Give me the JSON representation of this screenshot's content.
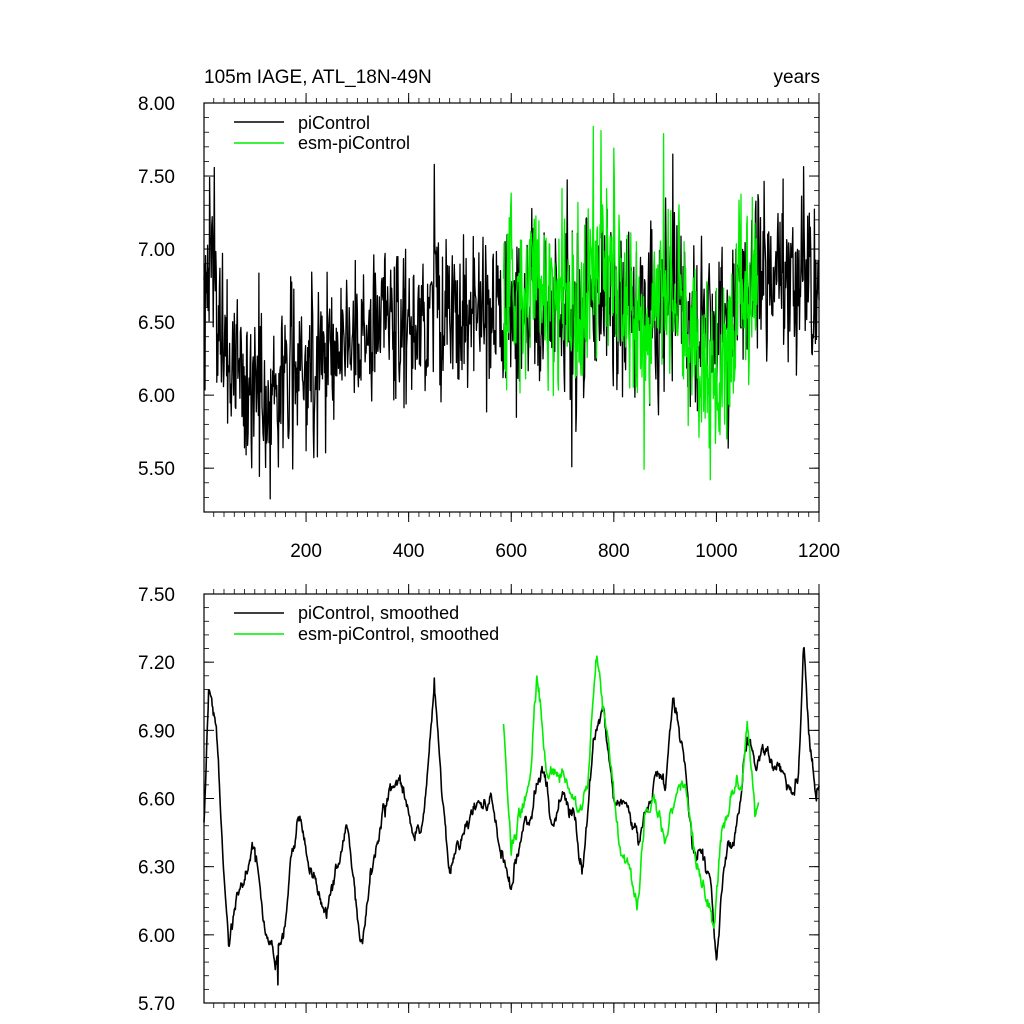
{
  "chart_data": [
    {
      "type": "line",
      "title": "105m IAGE, ATL_18N-49N",
      "unit": "years",
      "xlabel": "",
      "ylabel": "",
      "xlim": [
        1,
        1200
      ],
      "ylim": [
        5.2,
        8.0
      ],
      "x_ticks": [
        200,
        400,
        600,
        800,
        1000,
        1200
      ],
      "x_tick_labels": [
        "200",
        "400",
        "600",
        "800",
        "1000",
        "1200"
      ],
      "y_ticks": [
        5.5,
        6.0,
        6.5,
        7.0,
        7.5,
        8.0
      ],
      "y_tick_labels": [
        "5.50",
        "6.00",
        "6.50",
        "7.00",
        "7.50",
        "8.00"
      ],
      "legend_position": "top-left",
      "series": [
        {
          "name": "piControl",
          "color": "#000000",
          "x_range": [
            1,
            1200
          ],
          "profile": [
            [
              1,
              6.7
            ],
            [
              20,
              6.85
            ],
            [
              40,
              6.3
            ],
            [
              80,
              6.05
            ],
            [
              120,
              6.0
            ],
            [
              160,
              6.1
            ],
            [
              200,
              6.25
            ],
            [
              300,
              6.4
            ],
            [
              350,
              6.55
            ],
            [
              420,
              6.5
            ],
            [
              450,
              6.65
            ],
            [
              500,
              6.55
            ],
            [
              580,
              6.5
            ],
            [
              640,
              6.6
            ],
            [
              720,
              6.55
            ],
            [
              760,
              6.75
            ],
            [
              800,
              6.6
            ],
            [
              860,
              6.55
            ],
            [
              920,
              6.75
            ],
            [
              960,
              6.5
            ],
            [
              1000,
              6.45
            ],
            [
              1040,
              6.6
            ],
            [
              1080,
              6.75
            ],
            [
              1150,
              6.8
            ],
            [
              1200,
              6.75
            ]
          ],
          "noise_sd": 0.28,
          "peaks": [
            [
              12,
              7.49
            ],
            [
              130,
              5.29
            ],
            [
              450,
              7.58
            ],
            [
              718,
              5.51
            ],
            [
              915,
              7.65
            ],
            [
              1130,
              7.48
            ]
          ]
        },
        {
          "name": "esm-piControl",
          "color": "#00ee00",
          "x_range": [
            585,
            1080
          ],
          "profile": [
            [
              585,
              6.75
            ],
            [
              620,
              6.6
            ],
            [
              650,
              6.8
            ],
            [
              700,
              6.7
            ],
            [
              740,
              6.6
            ],
            [
              770,
              7.0
            ],
            [
              800,
              6.7
            ],
            [
              840,
              6.5
            ],
            [
              900,
              6.75
            ],
            [
              940,
              6.6
            ],
            [
              970,
              6.2
            ],
            [
              1000,
              6.15
            ],
            [
              1030,
              6.4
            ],
            [
              1050,
              6.75
            ],
            [
              1080,
              6.8
            ]
          ],
          "noise_sd": 0.3,
          "peaks": [
            [
              760,
              7.84
            ],
            [
              998,
              5.67
            ]
          ]
        }
      ]
    },
    {
      "type": "line",
      "title": "",
      "xlabel": "",
      "ylabel": "",
      "xlim": [
        1,
        1200
      ],
      "ylim": [
        5.7,
        7.5
      ],
      "x_ticks": [
        200,
        400,
        600,
        800,
        1000,
        1200
      ],
      "y_ticks": [
        5.7,
        6.0,
        6.3,
        6.6,
        6.9,
        7.2,
        7.5
      ],
      "y_tick_labels": [
        "5.70",
        "6.00",
        "6.30",
        "6.60",
        "6.90",
        "7.20",
        "7.50"
      ],
      "legend_position": "top-left",
      "series": [
        {
          "name": "piControl, smoothed",
          "color": "#000000",
          "x_range": [
            1,
            1200
          ],
          "profile": [
            [
              1,
              6.5
            ],
            [
              10,
              7.05
            ],
            [
              25,
              6.9
            ],
            [
              40,
              6.25
            ],
            [
              50,
              5.92
            ],
            [
              60,
              6.1
            ],
            [
              80,
              6.25
            ],
            [
              100,
              6.35
            ],
            [
              120,
              6.0
            ],
            [
              140,
              5.8
            ],
            [
              155,
              6.0
            ],
            [
              170,
              6.3
            ],
            [
              185,
              6.55
            ],
            [
              200,
              6.4
            ],
            [
              220,
              6.2
            ],
            [
              240,
              6.1
            ],
            [
              260,
              6.3
            ],
            [
              280,
              6.45
            ],
            [
              300,
              6.05
            ],
            [
              310,
              5.95
            ],
            [
              330,
              6.3
            ],
            [
              350,
              6.5
            ],
            [
              370,
              6.7
            ],
            [
              390,
              6.65
            ],
            [
              410,
              6.45
            ],
            [
              430,
              6.55
            ],
            [
              450,
              7.13
            ],
            [
              465,
              6.6
            ],
            [
              480,
              6.3
            ],
            [
              500,
              6.4
            ],
            [
              520,
              6.55
            ],
            [
              560,
              6.6
            ],
            [
              580,
              6.4
            ],
            [
              600,
              6.2
            ],
            [
              620,
              6.45
            ],
            [
              640,
              6.55
            ],
            [
              660,
              6.75
            ],
            [
              680,
              6.45
            ],
            [
              700,
              6.6
            ],
            [
              720,
              6.55
            ],
            [
              740,
              6.3
            ],
            [
              760,
              6.85
            ],
            [
              780,
              7.0
            ],
            [
              800,
              6.6
            ],
            [
              820,
              6.55
            ],
            [
              850,
              6.4
            ],
            [
              880,
              6.7
            ],
            [
              900,
              6.6
            ],
            [
              915,
              7.05
            ],
            [
              935,
              6.8
            ],
            [
              955,
              6.4
            ],
            [
              975,
              6.35
            ],
            [
              990,
              6.2
            ],
            [
              1000,
              5.9
            ],
            [
              1015,
              6.3
            ],
            [
              1030,
              6.4
            ],
            [
              1045,
              6.6
            ],
            [
              1060,
              6.85
            ],
            [
              1080,
              6.75
            ],
            [
              1100,
              6.8
            ],
            [
              1120,
              6.75
            ],
            [
              1140,
              6.65
            ],
            [
              1160,
              6.7
            ],
            [
              1170,
              7.26
            ],
            [
              1180,
              6.9
            ],
            [
              1195,
              6.6
            ],
            [
              1200,
              6.65
            ]
          ],
          "noise_sd": 0.04,
          "peaks": [
            [
              450,
              7.13
            ],
            [
              1000,
              5.89
            ],
            [
              1170,
              7.26
            ],
            [
              145,
              5.78
            ]
          ]
        },
        {
          "name": "esm-piControl, smoothed",
          "color": "#00ee00",
          "x_range": [
            585,
            1082
          ],
          "profile": [
            [
              585,
              6.93
            ],
            [
              600,
              6.35
            ],
            [
              620,
              6.55
            ],
            [
              640,
              6.75
            ],
            [
              650,
              7.13
            ],
            [
              670,
              6.7
            ],
            [
              690,
              6.75
            ],
            [
              710,
              6.65
            ],
            [
              730,
              6.55
            ],
            [
              750,
              6.7
            ],
            [
              765,
              7.2
            ],
            [
              780,
              7.0
            ],
            [
              795,
              6.7
            ],
            [
              810,
              6.4
            ],
            [
              830,
              6.3
            ],
            [
              845,
              6.1
            ],
            [
              860,
              6.5
            ],
            [
              880,
              6.6
            ],
            [
              900,
              6.4
            ],
            [
              920,
              6.6
            ],
            [
              940,
              6.65
            ],
            [
              960,
              6.3
            ],
            [
              980,
              6.15
            ],
            [
              995,
              6.05
            ],
            [
              1010,
              6.4
            ],
            [
              1030,
              6.6
            ],
            [
              1050,
              6.7
            ],
            [
              1060,
              6.95
            ],
            [
              1075,
              6.5
            ],
            [
              1082,
              6.55
            ]
          ],
          "noise_sd": 0.04,
          "peaks": [
            [
              765,
              7.21
            ],
            [
              995,
              6.03
            ],
            [
              845,
              6.11
            ]
          ]
        }
      ]
    }
  ]
}
